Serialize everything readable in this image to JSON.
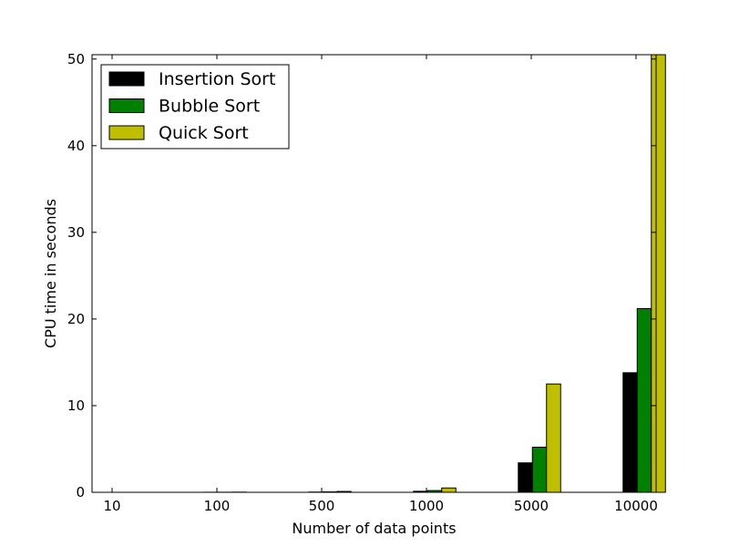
{
  "chart_data": {
    "type": "bar",
    "categories": [
      "10",
      "100",
      "500",
      "1000",
      "5000",
      "10000"
    ],
    "series": [
      {
        "name": "Insertion Sort",
        "color": "#000000",
        "values": [
          0.0,
          0.01,
          0.03,
          0.12,
          3.4,
          13.8
        ]
      },
      {
        "name": "Bubble Sort",
        "color": "#008000",
        "values": [
          0.0,
          0.01,
          0.05,
          0.2,
          5.2,
          21.2
        ]
      },
      {
        "name": "Quick Sort",
        "color": "#bfbf00",
        "values": [
          0.0,
          0.02,
          0.1,
          0.5,
          12.5,
          50.5
        ]
      }
    ],
    "xlabel": "Number of data points",
    "ylabel": "CPU time in seconds",
    "ylim": [
      0,
      50.5
    ],
    "yticks": [
      "0",
      "10",
      "20",
      "30",
      "40",
      "50"
    ],
    "grid": false,
    "legend_position": "top-left"
  }
}
